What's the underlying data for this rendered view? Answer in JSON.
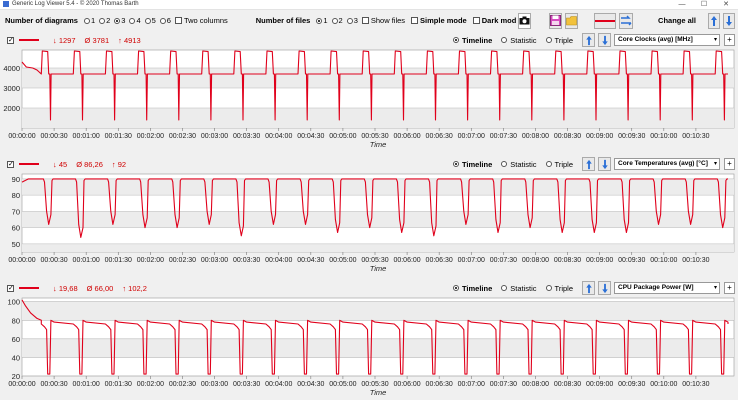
{
  "window": {
    "title": "Generic Log Viewer 5.4 - © 2020 Thomas Barth",
    "minimize": "—",
    "maximize": "☐",
    "close": "✕"
  },
  "toolbar": {
    "diagrams_label": "Number of diagrams",
    "diagram_options": [
      "1",
      "2",
      "3",
      "4",
      "5",
      "6"
    ],
    "diagrams_selected": "3",
    "two_columns_label": "Two columns",
    "files_label": "Number of files",
    "file_options": [
      "1",
      "2",
      "3"
    ],
    "files_selected": "1",
    "show_files_label": "Show files",
    "simple_mode_label": "Simple mode",
    "dark_mode_label": "Dark mod",
    "change_all_label": "Change all"
  },
  "view_modes": [
    "Timeline",
    "Statistic",
    "Triple"
  ],
  "panels": [
    {
      "min": "1297",
      "avg": "3781",
      "max": "4913",
      "selected_view": "Timeline",
      "sensor": "Core Clocks (avg) [MHz]",
      "color": "#e0001b",
      "chart_data": {
        "type": "line",
        "xlabel": "Time",
        "ylabel": "",
        "ylim": [
          1000,
          4900
        ],
        "yticks": [
          2000,
          3000,
          4000
        ],
        "grid": true,
        "x_ticks": [
          "00:00:00",
          "00:00:30",
          "00:01:00",
          "00:01:30",
          "00:02:00",
          "00:02:30",
          "00:03:00",
          "00:03:30",
          "00:04:00",
          "00:04:30",
          "00:05:00",
          "00:05:30",
          "00:06:00",
          "00:06:30",
          "00:07:00",
          "00:07:30",
          "00:08:00",
          "00:08:30",
          "00:09:00",
          "00:09:30",
          "00:10:00",
          "00:10:30"
        ],
        "x_end": 660,
        "baseline": 3700,
        "start": [
          [
            0,
            4300
          ],
          [
            4,
            4050
          ],
          [
            10,
            4000
          ],
          [
            14,
            3900
          ]
        ],
        "period": 30,
        "peak_value": 4850,
        "peak_offset": 20,
        "dip_value": 1400,
        "dip_offset": 26,
        "dip_every": 2
      }
    },
    {
      "min": "45",
      "avg": "86,26",
      "max": "92",
      "selected_view": "Timeline",
      "sensor": "Core Temperatures (avg) [°C]",
      "color": "#e0001b",
      "chart_data": {
        "type": "line",
        "xlabel": "Time",
        "ylabel": "",
        "ylim": [
          45,
          93
        ],
        "yticks": [
          50,
          60,
          70,
          80,
          90
        ],
        "grid": true,
        "x_ticks": [
          "00:00:00",
          "00:00:30",
          "00:01:00",
          "00:01:30",
          "00:02:00",
          "00:02:30",
          "00:03:00",
          "00:03:30",
          "00:04:00",
          "00:04:30",
          "00:05:00",
          "00:05:30",
          "00:06:00",
          "00:06:30",
          "00:07:00",
          "00:07:30",
          "00:08:00",
          "00:08:30",
          "00:09:00",
          "00:09:30",
          "00:10:00",
          "00:10:30"
        ],
        "x_end": 660,
        "baseline": 90,
        "start": [
          [
            0,
            88
          ],
          [
            6,
            90
          ]
        ],
        "period": 30,
        "dip_values": [
          62,
          54,
          62,
          60,
          60,
          62,
          55,
          62,
          62,
          57,
          60,
          57,
          55,
          62,
          57,
          60,
          57,
          57,
          57,
          62,
          62,
          60
        ]
      }
    },
    {
      "min": "19,68",
      "avg": "66,00",
      "max": "102,2",
      "selected_view": "Timeline",
      "sensor": "CPU Package Power [W]",
      "color": "#e0001b",
      "chart_data": {
        "type": "line",
        "xlabel": "Time",
        "ylabel": "",
        "ylim": [
          20,
          104
        ],
        "yticks": [
          20,
          40,
          60,
          80,
          100
        ],
        "grid": true,
        "x_ticks": [
          "00:00:00",
          "00:00:30",
          "00:01:00",
          "00:01:30",
          "00:02:00",
          "00:02:30",
          "00:03:00",
          "00:03:30",
          "00:04:00",
          "00:04:30",
          "00:05:00",
          "00:05:30",
          "00:06:00",
          "00:06:30",
          "00:07:00",
          "00:07:30",
          "00:08:00",
          "00:08:30",
          "00:09:00",
          "00:09:30",
          "00:10:00",
          "00:10:30"
        ],
        "x_end": 660,
        "baseline": 76,
        "start": [
          [
            0,
            102
          ],
          [
            3,
            96
          ],
          [
            8,
            88
          ],
          [
            14,
            82
          ],
          [
            18,
            80
          ]
        ],
        "period": 30,
        "dip_value": 22
      }
    }
  ]
}
